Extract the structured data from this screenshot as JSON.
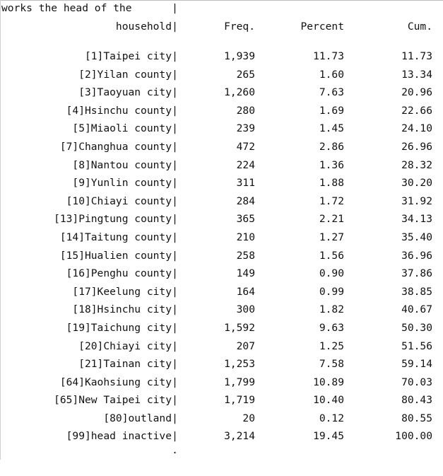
{
  "header": {
    "line1": "works the head of the",
    "line2_label": "household",
    "separator": "|",
    "freq": "Freq.",
    "percent": "Percent",
    "cum": "Cum."
  },
  "divider": {
    "left": "--------------------------------------------------",
    "plus": "+",
    "right": "------------------------------------------------------------------------"
  },
  "rows": [
    {
      "label": "[1]Taipei city",
      "freq": "1,939",
      "percent": "11.73",
      "cum": "11.73"
    },
    {
      "label": "[2]Yilan county",
      "freq": "265",
      "percent": "1.60",
      "cum": "13.34"
    },
    {
      "label": "[3]Taoyuan city",
      "freq": "1,260",
      "percent": "7.63",
      "cum": "20.96"
    },
    {
      "label": "[4]Hsinchu county",
      "freq": "280",
      "percent": "1.69",
      "cum": "22.66"
    },
    {
      "label": "[5]Miaoli county",
      "freq": "239",
      "percent": "1.45",
      "cum": "24.10"
    },
    {
      "label": "[7]Changhua county",
      "freq": "472",
      "percent": "2.86",
      "cum": "26.96"
    },
    {
      "label": "[8]Nantou county",
      "freq": "224",
      "percent": "1.36",
      "cum": "28.32"
    },
    {
      "label": "[9]Yunlin county",
      "freq": "311",
      "percent": "1.88",
      "cum": "30.20"
    },
    {
      "label": "[10]Chiayi county",
      "freq": "284",
      "percent": "1.72",
      "cum": "31.92"
    },
    {
      "label": "[13]Pingtung county",
      "freq": "365",
      "percent": "2.21",
      "cum": "34.13"
    },
    {
      "label": "[14]Taitung county",
      "freq": "210",
      "percent": "1.27",
      "cum": "35.40"
    },
    {
      "label": "[15]Hualien county",
      "freq": "258",
      "percent": "1.56",
      "cum": "36.96"
    },
    {
      "label": "[16]Penghu county",
      "freq": "149",
      "percent": "0.90",
      "cum": "37.86"
    },
    {
      "label": "[17]Keelung city",
      "freq": "164",
      "percent": "0.99",
      "cum": "38.85"
    },
    {
      "label": "[18]Hsinchu city",
      "freq": "300",
      "percent": "1.82",
      "cum": "40.67"
    },
    {
      "label": "[19]Taichung city",
      "freq": "1,592",
      "percent": "9.63",
      "cum": "50.30"
    },
    {
      "label": "[20]Chiayi city",
      "freq": "207",
      "percent": "1.25",
      "cum": "51.56"
    },
    {
      "label": "[21]Tainan city",
      "freq": "1,253",
      "percent": "7.58",
      "cum": "59.14"
    },
    {
      "label": "[64]Kaohsiung city",
      "freq": "1,799",
      "percent": "10.89",
      "cum": "70.03"
    },
    {
      "label": "[65]New Taipei city",
      "freq": "1,719",
      "percent": "10.40",
      "cum": "80.43"
    },
    {
      "label": "[80]outland",
      "freq": "20",
      "percent": "0.12",
      "cum": "80.55"
    },
    {
      "label": "[99]head inactive",
      "freq": "3,214",
      "percent": "19.45",
      "cum": "100.00"
    }
  ],
  "footer": {
    "separator": "."
  }
}
